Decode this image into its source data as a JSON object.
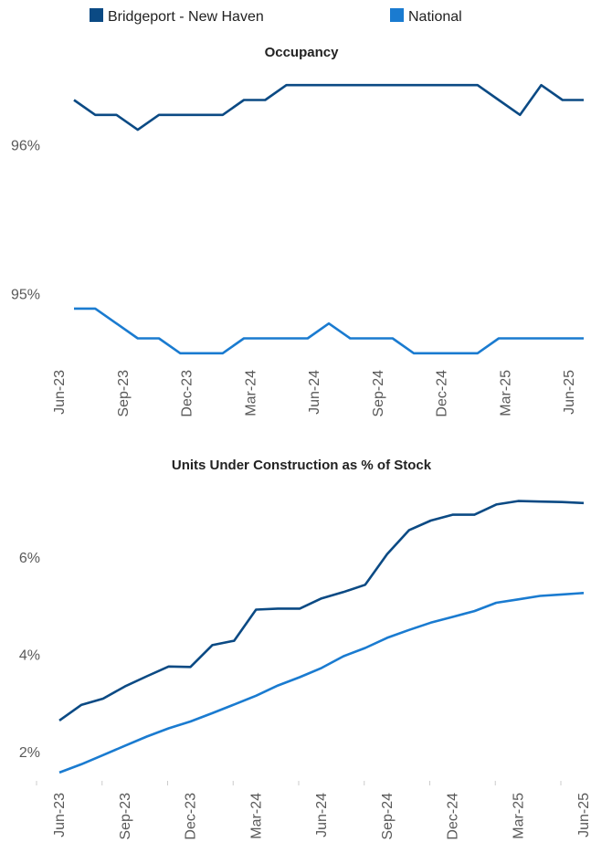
{
  "chart_data": [
    {
      "type": "line",
      "title": "Occupancy",
      "categories": [
        "Jun-23",
        null,
        null,
        "Sep-23",
        null,
        null,
        "Dec-23",
        null,
        null,
        "Mar-24",
        null,
        null,
        "Jun-24",
        null,
        null,
        "Sep-24",
        null,
        null,
        "Dec-24",
        null,
        null,
        "Mar-25",
        null,
        null,
        "Jun-25"
      ],
      "series": [
        {
          "name": "Bridgeport - New Haven",
          "color": "#0b4a84",
          "values": [
            96.3,
            96.2,
            96.2,
            96.1,
            96.2,
            96.2,
            96.2,
            96.2,
            96.3,
            96.3,
            96.4,
            96.4,
            96.4,
            96.4,
            96.4,
            96.4,
            96.4,
            96.4,
            96.4,
            96.4,
            96.3,
            96.2,
            96.4,
            96.3,
            96.3
          ]
        },
        {
          "name": "National",
          "color": "#1a7bd0",
          "values": [
            94.9,
            94.9,
            94.8,
            94.7,
            94.7,
            94.6,
            94.6,
            94.6,
            94.7,
            94.7,
            94.7,
            94.7,
            94.8,
            94.7,
            94.7,
            94.7,
            94.6,
            94.6,
            94.6,
            94.6,
            94.7,
            94.7,
            94.7,
            94.7,
            94.7
          ]
        }
      ],
      "ylim": [
        94.55,
        96.45
      ],
      "yticks": [
        {
          "value": 95,
          "label": "95%"
        },
        {
          "value": 96,
          "label": "96%"
        }
      ]
    },
    {
      "type": "line",
      "title": "Units Under Construction as % of Stock",
      "categories": [
        "Jun-23",
        null,
        null,
        "Sep-23",
        null,
        null,
        "Dec-23",
        null,
        null,
        "Mar-24",
        null,
        null,
        "Jun-24",
        null,
        null,
        "Sep-24",
        null,
        null,
        "Dec-24",
        null,
        null,
        "Mar-25",
        null,
        null,
        "Jun-25"
      ],
      "series": [
        {
          "color": "#0b4a84",
          "values": [
            2.64,
            2.96,
            3.09,
            3.34,
            3.55,
            3.75,
            3.74,
            4.19,
            4.28,
            4.92,
            4.94,
            4.94,
            5.15,
            5.28,
            5.43,
            6.06,
            6.55,
            6.75,
            6.87,
            6.87,
            7.08,
            7.15,
            7.14,
            7.13,
            7.11
          ]
        },
        {
          "color": "#1a7bd0",
          "values": [
            1.57,
            1.74,
            1.93,
            2.12,
            2.31,
            2.48,
            2.62,
            2.79,
            2.97,
            3.15,
            3.36,
            3.53,
            3.72,
            3.96,
            4.13,
            4.34,
            4.5,
            4.65,
            4.77,
            4.89,
            5.06,
            5.13,
            5.2,
            5.23,
            5.26
          ]
        }
      ],
      "ylim": [
        1.4,
        7.5
      ],
      "yticks": [
        {
          "value": 2,
          "label": "2%"
        },
        {
          "value": 4,
          "label": "4%"
        },
        {
          "value": 6,
          "label": "6%"
        }
      ]
    }
  ]
}
